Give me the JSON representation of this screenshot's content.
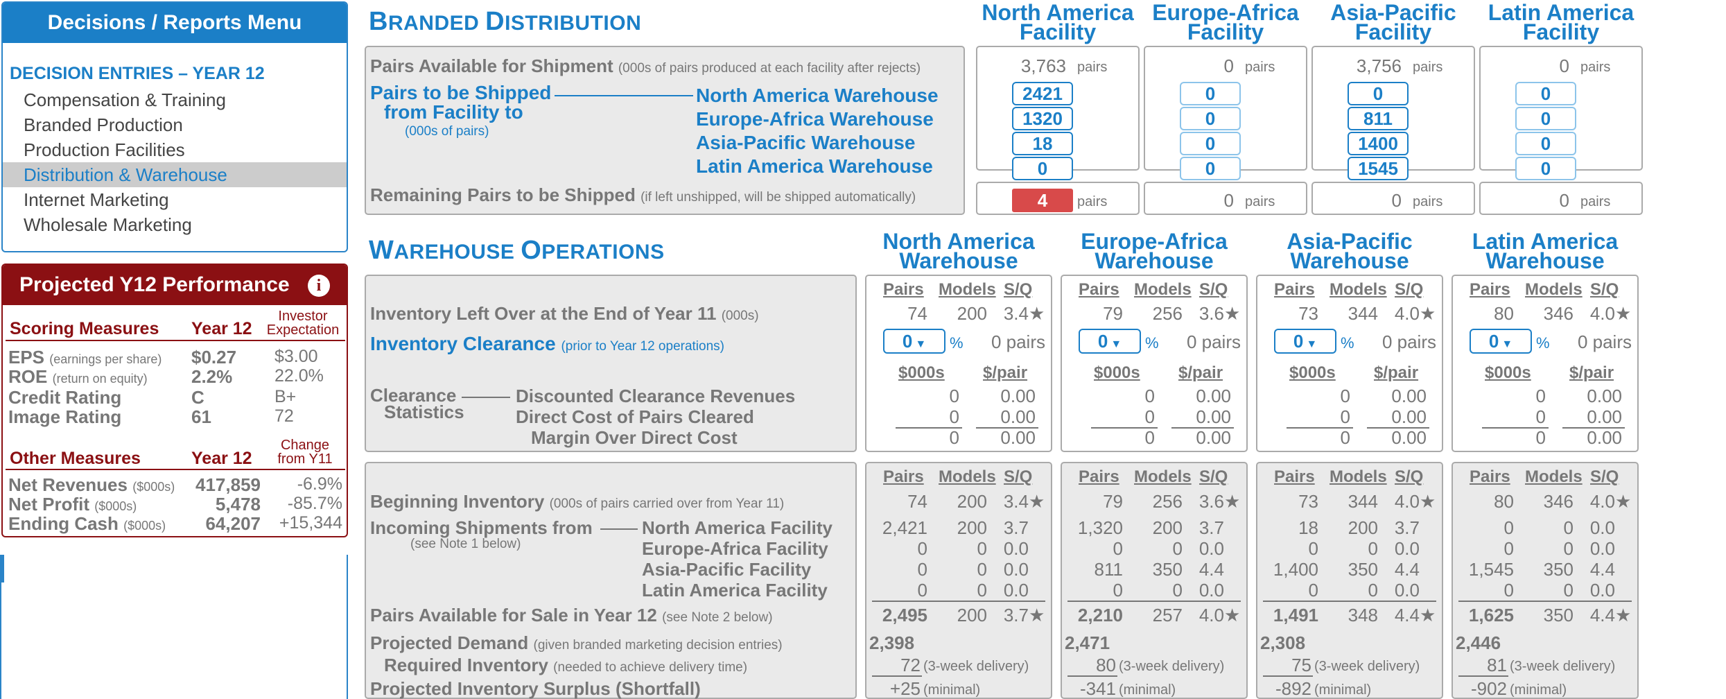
{
  "menu": {
    "title": "Decisions / Reports Menu",
    "section": "DECISION ENTRIES – YEAR 12",
    "items": [
      {
        "label": "Compensation & Training"
      },
      {
        "label": "Branded Production"
      },
      {
        "label": "Production Facilities"
      },
      {
        "label": "Distribution & Warehouse"
      },
      {
        "label": "Internet Marketing"
      },
      {
        "label": "Wholesale Marketing"
      }
    ]
  },
  "projected": {
    "title": "Projected Y12 Performance",
    "scoring_header": "Scoring Measures",
    "year_header": "Year 12",
    "investor_header_1": "Investor",
    "investor_header_2": "Expectation",
    "scoring": [
      {
        "label": "EPS",
        "note": "(earnings per share)",
        "y12": "$0.27",
        "exp": "$3.00"
      },
      {
        "label": "ROE",
        "note": "(return on equity)",
        "y12": "2.2%",
        "exp": "22.0%"
      },
      {
        "label": "Credit Rating",
        "note": "",
        "y12": "C",
        "exp": "B+"
      },
      {
        "label": "Image Rating",
        "note": "",
        "y12": "61",
        "exp": "72"
      }
    ],
    "other_header": "Other Measures",
    "change_header_1": "Change",
    "change_header_2": "from Y11",
    "other": [
      {
        "label": "Net Revenues",
        "note": "($000s)",
        "y12": "417,859",
        "chg": "-6.9%"
      },
      {
        "label": "Net Profit",
        "note": "($000s)",
        "y12": "5,478",
        "chg": "-85.7%"
      },
      {
        "label": "Ending Cash",
        "note": "($000s)",
        "y12": "64,207",
        "chg": "+15,344"
      }
    ]
  },
  "distribution": {
    "title_big_1": "B",
    "title_small_1": "RANDED ",
    "title_big_2": "D",
    "title_small_2": "ISTRIBUTION",
    "facilities": [
      "North America Facility",
      "Europe-Africa Facility",
      "Asia-Pacific Facility",
      "Latin America Facility"
    ],
    "facility_line1": [
      "North America",
      "Europe-Africa",
      "Asia-Pacific",
      "Latin America"
    ],
    "facility_line2": [
      "Facility",
      "Facility",
      "Facility",
      "Facility"
    ],
    "available_label": "Pairs Available for Shipment",
    "available_note": "(000s of pairs produced at each facility after rejects)",
    "available": [
      "3,763",
      "0",
      "3,756",
      "0"
    ],
    "pairs_unit": "pairs",
    "ship_label_1": "Pairs to be Shipped",
    "ship_label_2": "from Facility to",
    "ship_label_3": "(000s of pairs)",
    "warehouses": [
      "North America Warehouse",
      "Europe-Africa Warehouse",
      "Asia-Pacific Warehouse",
      "Latin America Warehouse"
    ],
    "shipments": [
      [
        "2421",
        "1320",
        "18",
        "0"
      ],
      [
        "0",
        "0",
        "0",
        "0"
      ],
      [
        "0",
        "811",
        "1400",
        "1545"
      ],
      [
        "0",
        "0",
        "0",
        "0"
      ]
    ],
    "remaining_label": "Remaining Pairs to be Shipped",
    "remaining_note": "(if left unshipped, will be shipped automatically)",
    "remaining": [
      "4",
      "0",
      "0",
      "0"
    ],
    "alert_color": "#d84a4a"
  },
  "warehouse": {
    "title_big_1": "W",
    "title_small_1": "AREHOUSE ",
    "title_big_2": "O",
    "title_small_2": "PERATIONS",
    "wh_line1": [
      "North America",
      "Europe-Africa",
      "Asia-Pacific",
      "Latin America"
    ],
    "wh_line2": [
      "Warehouse",
      "Warehouse",
      "Warehouse",
      "Warehouse"
    ],
    "col_pairs": "Pairs",
    "col_models": "Models",
    "col_sq": "S/Q",
    "col_k": "$000s",
    "col_per": "$/pair",
    "leftover_label": "Inventory Left Over at the End of Year 11",
    "leftover_note": "(000s)",
    "leftover": [
      {
        "pairs": "74",
        "models": "200",
        "sq": "3.4"
      },
      {
        "pairs": "79",
        "models": "256",
        "sq": "3.6"
      },
      {
        "pairs": "73",
        "models": "344",
        "sq": "4.0"
      },
      {
        "pairs": "80",
        "models": "346",
        "sq": "4.0"
      }
    ],
    "clearance_label": "Inventory Clearance",
    "clearance_note": "(prior to Year 12 operations)",
    "clearance_pct": [
      "0",
      "0",
      "0",
      "0"
    ],
    "pct_sign": "%",
    "clearance_pairs": [
      "0 pairs",
      "0 pairs",
      "0 pairs",
      "0 pairs"
    ],
    "stats_label_1": "Clearance",
    "stats_label_2": "Statistics",
    "stats_rows": [
      "Discounted Clearance Revenues",
      "Direct Cost of Pairs Cleared",
      "Margin Over Direct Cost"
    ],
    "stats_k": [
      "0",
      "0",
      "0"
    ],
    "stats_per": [
      "0.00",
      "0.00",
      "0.00"
    ],
    "begin_label": "Beginning Inventory",
    "begin_note": "(000s of pairs carried over from Year 11)",
    "begin": [
      {
        "pairs": "74",
        "models": "200",
        "sq": "3.4"
      },
      {
        "pairs": "79",
        "models": "256",
        "sq": "3.6"
      },
      {
        "pairs": "73",
        "models": "344",
        "sq": "4.0"
      },
      {
        "pairs": "80",
        "models": "346",
        "sq": "4.0"
      }
    ],
    "incoming_label": "Incoming Shipments from",
    "incoming_note": "(see Note 1 below)",
    "incoming_sources": [
      "North America Facility",
      "Europe-Africa Facility",
      "Asia-Pacific Facility",
      "Latin America Facility"
    ],
    "incoming": [
      [
        [
          "2,421",
          "200",
          "3.7"
        ],
        [
          "0",
          "0",
          "0.0"
        ],
        [
          "0",
          "0",
          "0.0"
        ],
        [
          "0",
          "0",
          "0.0"
        ]
      ],
      [
        [
          "1,320",
          "200",
          "3.7"
        ],
        [
          "0",
          "0",
          "0.0"
        ],
        [
          "811",
          "350",
          "4.4"
        ],
        [
          "0",
          "0",
          "0.0"
        ]
      ],
      [
        [
          "18",
          "200",
          "3.7"
        ],
        [
          "0",
          "0",
          "0.0"
        ],
        [
          "1,400",
          "350",
          "4.4"
        ],
        [
          "0",
          "0",
          "0.0"
        ]
      ],
      [
        [
          "0",
          "0",
          "0.0"
        ],
        [
          "0",
          "0",
          "0.0"
        ],
        [
          "1,545",
          "350",
          "4.4"
        ],
        [
          "0",
          "0",
          "0.0"
        ]
      ]
    ],
    "avail_label": "Pairs Available for Sale in Year 12",
    "avail_note": "(see Note 2 below)",
    "avail": [
      {
        "pairs": "2,495",
        "models": "200",
        "sq": "3.7"
      },
      {
        "pairs": "2,210",
        "models": "257",
        "sq": "4.0"
      },
      {
        "pairs": "1,491",
        "models": "348",
        "sq": "4.4"
      },
      {
        "pairs": "1,625",
        "models": "350",
        "sq": "4.4"
      }
    ],
    "demand_label": "Projected Demand",
    "demand_note": "(given branded marketing decision entries)",
    "demand": [
      "2,398",
      "2,471",
      "2,308",
      "2,446"
    ],
    "required_label": "Required Inventory",
    "required_note": "(needed to achieve delivery time)",
    "required": [
      "72",
      "80",
      "75",
      "81"
    ],
    "delivery_note": "(3-week delivery)",
    "surplus_label": "Projected Inventory Surplus (Shortfall)",
    "surplus": [
      "+25",
      "-341",
      "-892",
      "-902"
    ],
    "surplus_note": "(minimal)"
  },
  "colors": {
    "accent": "#1b7fc7",
    "brand_dark": "#8b1013",
    "panel": "#eaeaea"
  }
}
